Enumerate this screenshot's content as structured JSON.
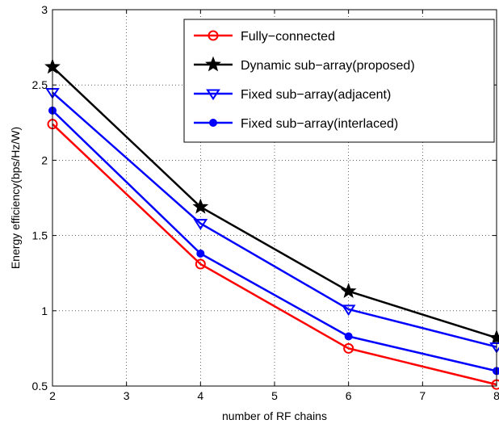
{
  "chart_data": {
    "type": "line",
    "title": "",
    "xlabel": "number of RF chains",
    "ylabel": "Energy efficiency(bps/Hz/W)",
    "xlim": [
      2,
      8
    ],
    "ylim": [
      0.5,
      3
    ],
    "xticks": [
      "2",
      "3",
      "4",
      "5",
      "6",
      "7",
      "8"
    ],
    "yticks": [
      "0.5",
      "1",
      "1.5",
      "2",
      "2.5",
      "3"
    ],
    "grid": true,
    "legend_position": "top-right",
    "x": [
      2,
      4,
      6,
      8
    ],
    "series": [
      {
        "name": "Fully−connected",
        "color": "#ff0000",
        "marker": "circle-open",
        "values": [
          2.24,
          1.31,
          0.75,
          0.51
        ]
      },
      {
        "name": "Dynamic sub−array(proposed)",
        "color": "#000000",
        "marker": "star",
        "values": [
          2.62,
          1.69,
          1.13,
          0.82
        ]
      },
      {
        "name": "Fixed sub−array(adjacent)",
        "color": "#0000ff",
        "marker": "triangle-down",
        "values": [
          2.45,
          1.58,
          1.01,
          0.76
        ]
      },
      {
        "name": "Fixed sub−array(interlaced)",
        "color": "#0000ff",
        "marker": "circle-filled",
        "values": [
          2.33,
          1.38,
          0.83,
          0.6
        ]
      }
    ]
  }
}
